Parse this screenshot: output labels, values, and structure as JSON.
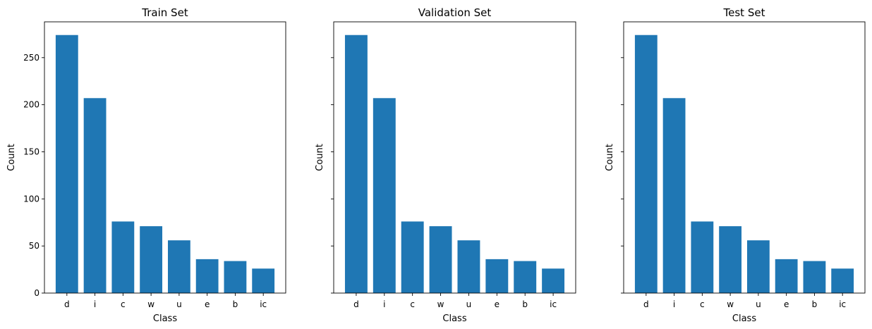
{
  "chart_data": [
    {
      "type": "bar",
      "title": "Train Set",
      "xlabel": "Class",
      "ylabel": "Count",
      "categories": [
        "d",
        "i",
        "c",
        "w",
        "u",
        "e",
        "b",
        "ic"
      ],
      "values": [
        274,
        207,
        76,
        71,
        56,
        36,
        34,
        26
      ],
      "ylim": [
        0,
        288
      ],
      "yticks": [
        0,
        50,
        100,
        150,
        200,
        250
      ],
      "show_ytick_labels": true,
      "bar_color": "#1f77b4",
      "grid": false
    },
    {
      "type": "bar",
      "title": "Validation Set",
      "xlabel": "Class",
      "ylabel": "Count",
      "categories": [
        "d",
        "i",
        "c",
        "w",
        "u",
        "e",
        "b",
        "ic"
      ],
      "values": [
        274,
        207,
        76,
        71,
        56,
        36,
        34,
        26
      ],
      "ylim": [
        0,
        288
      ],
      "yticks": [
        0,
        50,
        100,
        150,
        200,
        250
      ],
      "show_ytick_labels": false,
      "bar_color": "#1f77b4",
      "grid": false
    },
    {
      "type": "bar",
      "title": "Test Set",
      "xlabel": "Class",
      "ylabel": "Count",
      "categories": [
        "d",
        "i",
        "c",
        "w",
        "u",
        "e",
        "b",
        "ic"
      ],
      "values": [
        274,
        207,
        76,
        71,
        56,
        36,
        34,
        26
      ],
      "ylim": [
        0,
        288
      ],
      "yticks": [
        0,
        50,
        100,
        150,
        200,
        250
      ],
      "show_ytick_labels": false,
      "bar_color": "#1f77b4",
      "grid": false
    }
  ]
}
